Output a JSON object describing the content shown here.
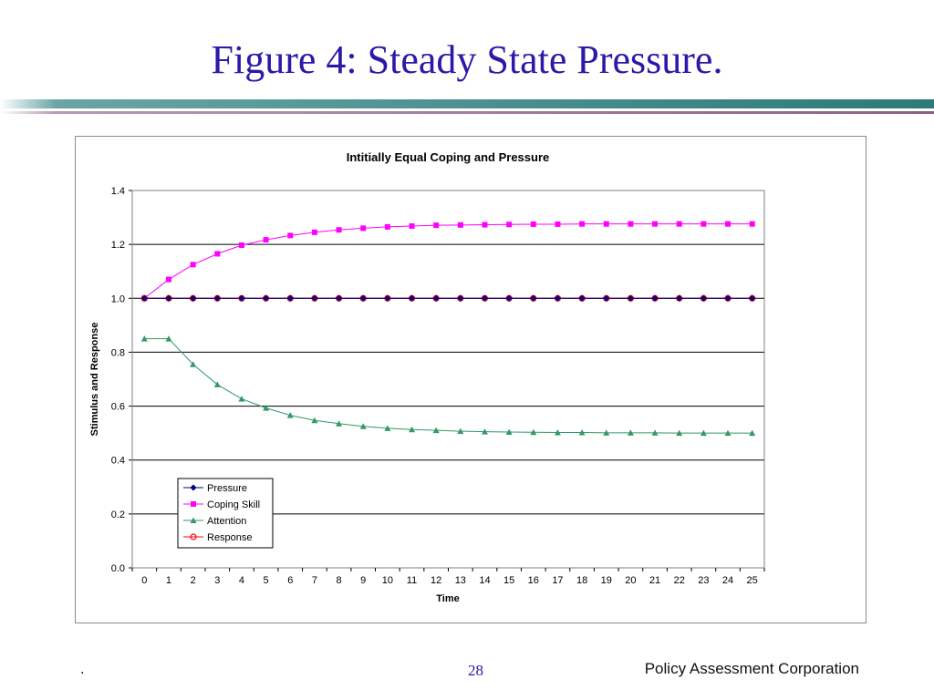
{
  "slide": {
    "title": "Figure 4:  Steady State Pressure.",
    "footer_left": ".",
    "page_number": "28",
    "organization": "Policy Assessment Corporation"
  },
  "colors": {
    "title": "#2b1aa8",
    "pressure": "#000080",
    "coping_skill": "#ff00ff",
    "attention": "#339966",
    "response": "#ff0000"
  },
  "chart_data": {
    "type": "line",
    "title": "Intitially Equal Coping and Pressure",
    "xlabel": "Time",
    "ylabel": "Stimulus and Response",
    "x": [
      0,
      1,
      2,
      3,
      4,
      5,
      6,
      7,
      8,
      9,
      10,
      11,
      12,
      13,
      14,
      15,
      16,
      17,
      18,
      19,
      20,
      21,
      22,
      23,
      24,
      25
    ],
    "ylim": [
      0,
      1.4
    ],
    "yticks": [
      "0.0",
      "0.2",
      "0.4",
      "0.6",
      "0.8",
      "1.0",
      "1.2",
      "1.4"
    ],
    "grid": true,
    "legend_position": "bottom-left",
    "series": [
      {
        "name": "Pressure",
        "marker": "diamond",
        "values": [
          1,
          1,
          1,
          1,
          1,
          1,
          1,
          1,
          1,
          1,
          1,
          1,
          1,
          1,
          1,
          1,
          1,
          1,
          1,
          1,
          1,
          1,
          1,
          1,
          1,
          1
        ]
      },
      {
        "name": "Coping Skill",
        "marker": "square",
        "values": [
          1.0,
          1.07,
          1.125,
          1.165,
          1.197,
          1.217,
          1.233,
          1.245,
          1.254,
          1.26,
          1.265,
          1.268,
          1.271,
          1.272,
          1.273,
          1.274,
          1.275,
          1.275,
          1.276,
          1.276,
          1.276,
          1.276,
          1.276,
          1.276,
          1.276,
          1.276
        ]
      },
      {
        "name": "Attention",
        "marker": "triangle",
        "values": [
          0.85,
          0.85,
          0.755,
          0.68,
          0.627,
          0.593,
          0.566,
          0.547,
          0.535,
          0.525,
          0.518,
          0.513,
          0.51,
          0.507,
          0.505,
          0.504,
          0.503,
          0.502,
          0.502,
          0.501,
          0.501,
          0.501,
          0.5,
          0.5,
          0.5,
          0.5
        ]
      },
      {
        "name": "Response",
        "marker": "circle",
        "values": [
          1,
          1,
          1,
          1,
          1,
          1,
          1,
          1,
          1,
          1,
          1,
          1,
          1,
          1,
          1,
          1,
          1,
          1,
          1,
          1,
          1,
          1,
          1,
          1,
          1,
          1
        ]
      }
    ]
  }
}
